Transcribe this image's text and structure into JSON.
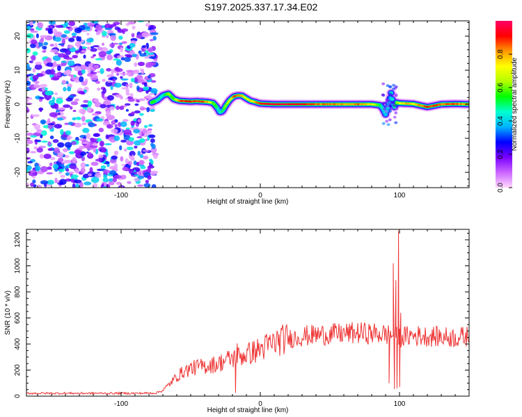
{
  "title": "S197.2025.337.17.34.E02",
  "chart_data": [
    {
      "type": "heatmap",
      "xlabel": "Height of straight line (km)",
      "ylabel": "Frequency (Hz)",
      "xlim": [
        -168,
        150
      ],
      "ylim": [
        -24.5,
        24.5
      ],
      "xticks": [
        -100,
        0,
        100
      ],
      "xtick_labels": [
        "-100",
        "0",
        "100"
      ],
      "yticks": [
        -20,
        -10,
        0,
        10,
        20
      ],
      "ytick_labels": [
        "-20",
        "-10",
        "0",
        "10",
        "20"
      ],
      "colorbar": {
        "label": "Normalized spectral amplitude",
        "range": [
          0,
          1
        ],
        "ticks": [
          0.0,
          0.2,
          0.4,
          0.6,
          0.8
        ],
        "tick_labels": [
          "0.0",
          "0.2",
          "0.4",
          "0.6",
          "0.8"
        ],
        "colors": [
          "#ffd8ff",
          "#cc66ff",
          "#7a00ff",
          "#0000ff",
          "#00b4ff",
          "#00ffd0",
          "#00ff00",
          "#b4ff00",
          "#ffff00",
          "#ff9900",
          "#ff0000",
          "#ff0066"
        ]
      },
      "noise_region_x": [
        -168,
        -77
      ],
      "ridge": {
        "x": [
          -78,
          -74,
          -70,
          -66,
          -62,
          -58,
          -54,
          -50,
          -46,
          -42,
          -38,
          -34,
          -31,
          -29,
          -27,
          -25,
          -22,
          -19,
          -16,
          -13,
          -10,
          -7,
          -4,
          -1,
          0,
          10,
          20,
          30,
          40,
          50,
          60,
          70,
          80,
          86,
          88,
          90,
          92,
          94,
          96,
          98,
          100,
          105,
          110,
          120,
          130,
          140,
          150
        ],
        "freq": [
          0.5,
          1.2,
          2.6,
          3.1,
          1.5,
          1.0,
          0.9,
          0.8,
          0.9,
          0.8,
          0.7,
          0.4,
          -1.0,
          -2.4,
          -2.0,
          -0.5,
          1.2,
          2.3,
          2.6,
          2.5,
          1.7,
          1.0,
          0.7,
          0.3,
          0.2,
          0.0,
          0.0,
          0.0,
          0.0,
          0.0,
          0.0,
          0.0,
          0.0,
          -0.3,
          -1.3,
          -3.0,
          -0.5,
          3.3,
          -1.2,
          0.5,
          0.3,
          0.2,
          0.1,
          -0.8,
          0.0,
          0.1,
          0.0
        ],
        "amp": [
          0.55,
          0.5,
          0.45,
          0.6,
          0.6,
          0.85,
          0.9,
          0.9,
          0.85,
          0.9,
          0.8,
          0.6,
          0.5,
          0.45,
          0.5,
          0.6,
          0.7,
          0.85,
          0.85,
          0.8,
          0.7,
          0.75,
          0.8,
          0.85,
          0.9,
          0.95,
          0.95,
          0.95,
          0.85,
          0.85,
          0.8,
          0.85,
          0.75,
          0.5,
          0.45,
          0.4,
          0.45,
          0.45,
          0.5,
          0.6,
          0.7,
          0.8,
          0.75,
          0.9,
          0.85,
          0.85,
          0.8
        ]
      }
    },
    {
      "type": "line",
      "xlabel": "Height of straight line (km)",
      "ylabel": "SNR (10 * v/v)",
      "xlim": [
        -168,
        150
      ],
      "ylim": [
        0,
        1280
      ],
      "xticks": [
        -100,
        0,
        100
      ],
      "xtick_labels": [
        "-100",
        "0",
        "100"
      ],
      "yticks": [
        0,
        200,
        400,
        600,
        800,
        1000,
        1200
      ],
      "ytick_labels": [
        "0",
        "200",
        "400",
        "600",
        "800",
        "1000",
        "1200"
      ],
      "series": [
        {
          "name": "SNR",
          "color": "#ee3333",
          "x": [
            -168,
            -150,
            -130,
            -110,
            -90,
            -75,
            -70,
            -65,
            -60,
            -55,
            -50,
            -45,
            -40,
            -35,
            -30,
            -25,
            -20,
            -15,
            -10,
            -5,
            0,
            5,
            10,
            15,
            20,
            25,
            30,
            40,
            50,
            60,
            70,
            80,
            85,
            90,
            93,
            96,
            98,
            100,
            103,
            106,
            110,
            120,
            130,
            140,
            150
          ],
          "values": [
            22,
            22,
            22,
            22,
            22,
            24,
            45,
            95,
            150,
            190,
            210,
            225,
            230,
            240,
            250,
            275,
            290,
            305,
            320,
            340,
            360,
            385,
            410,
            430,
            440,
            450,
            460,
            470,
            475,
            480,
            485,
            480,
            478,
            475,
            470,
            460,
            455,
            450,
            455,
            460,
            465,
            460,
            455,
            450,
            460
          ],
          "spikes": [
            {
              "x": 95.5,
              "y": 1020
            },
            {
              "x": 96.4,
              "y": 55
            },
            {
              "x": 97.4,
              "y": 890
            },
            {
              "x": 98.2,
              "y": 60
            },
            {
              "x": 99.3,
              "y": 1270
            },
            {
              "x": 100.1,
              "y": 70
            },
            {
              "x": 100.9,
              "y": 640
            },
            {
              "x": 92.5,
              "y": 100
            },
            {
              "x": -49.5,
              "y": 255
            },
            {
              "x": -17.8,
              "y": 25
            },
            {
              "x": -16.6,
              "y": 405
            }
          ]
        }
      ]
    }
  ]
}
